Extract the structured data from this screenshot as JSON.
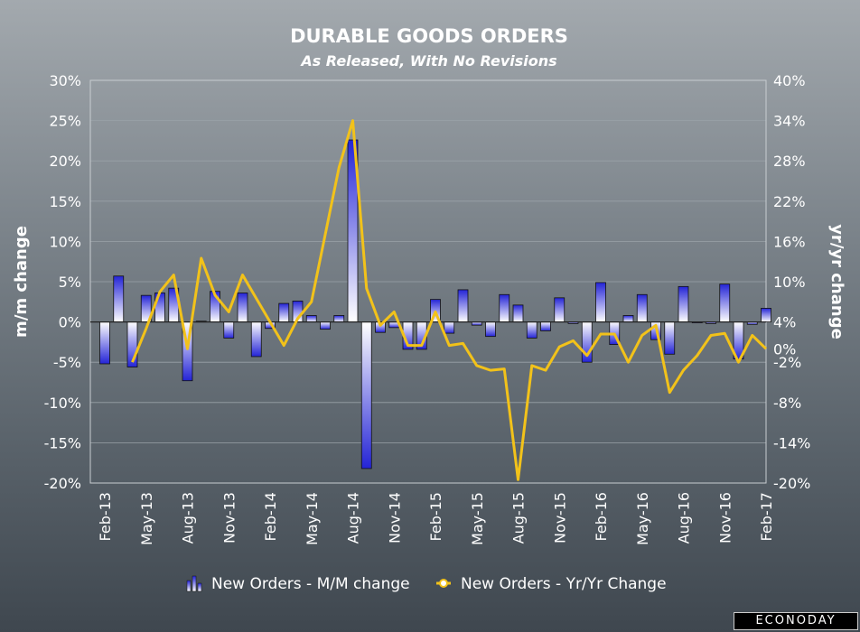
{
  "chart_data": {
    "type": "bar+line",
    "title": "DURABLE GOODS ORDERS",
    "subtitle": "As Released, With No Revisions",
    "ylabel_left": "m/m change",
    "ylabel_right": "yr/yr change",
    "ylim_left": [
      -20,
      30
    ],
    "ylim_right": [
      -20,
      40
    ],
    "yticks_left": [
      "30%",
      "25%",
      "20%",
      "15%",
      "10%",
      "5%",
      "0%",
      "-5%",
      "-10%",
      "-15%",
      "-20%"
    ],
    "yticks_right": [
      "40%",
      "34%",
      "28%",
      "22%",
      "16%",
      "10%",
      "4%",
      "0%",
      "-2%",
      "-8%",
      "-14%",
      "-20%"
    ],
    "x_tick_labels": [
      "Feb-13",
      "May-13",
      "Aug-13",
      "Nov-13",
      "Feb-14",
      "May-14",
      "Aug-14",
      "Nov-14",
      "Feb-15",
      "May-15",
      "Aug-15",
      "Nov-15",
      "Feb-16",
      "May-16",
      "Aug-16",
      "Nov-16",
      "Feb-17"
    ],
    "categories": [
      "Feb-13",
      "Mar-13",
      "Apr-13",
      "May-13",
      "Jun-13",
      "Jul-13",
      "Aug-13",
      "Sep-13",
      "Oct-13",
      "Nov-13",
      "Dec-13",
      "Jan-14",
      "Feb-14",
      "Mar-14",
      "Apr-14",
      "May-14",
      "Jun-14",
      "Jul-14",
      "Aug-14",
      "Sep-14",
      "Oct-14",
      "Nov-14",
      "Dec-14",
      "Jan-15",
      "Feb-15",
      "Mar-15",
      "Apr-15",
      "May-15",
      "Jun-15",
      "Jul-15",
      "Aug-15",
      "Sep-15",
      "Oct-15",
      "Nov-15",
      "Dec-15",
      "Jan-16",
      "Feb-16",
      "Mar-16",
      "Apr-16",
      "May-16",
      "Jun-16",
      "Jul-16",
      "Aug-16",
      "Sep-16",
      "Oct-16",
      "Nov-16",
      "Dec-16",
      "Jan-17",
      "Feb-17"
    ],
    "series": [
      {
        "name": "New Orders - M/M change",
        "type": "bar",
        "axis": "left",
        "values": [
          -5.2,
          5.7,
          -5.6,
          3.3,
          3.6,
          4.2,
          -7.3,
          0.1,
          3.8,
          -2.0,
          3.6,
          -4.3,
          -0.8,
          2.3,
          2.6,
          0.8,
          -0.9,
          0.8,
          22.6,
          -18.2,
          -1.3,
          -0.7,
          -3.4,
          -3.4,
          2.8,
          -1.4,
          4.0,
          -0.4,
          -1.8,
          3.4,
          2.1,
          -2.0,
          -1.1,
          3.0,
          -0.2,
          -5.0,
          4.9,
          -2.8,
          0.8,
          3.4,
          -2.2,
          -4.0,
          4.4,
          -0.1,
          -0.2,
          4.7,
          -4.6,
          -0.3,
          1.7
        ]
      },
      {
        "name": "New Orders - Yr/Yr Change",
        "type": "line",
        "axis": "right",
        "values": [
          null,
          null,
          -2.0,
          3.0,
          8.5,
          11.0,
          0.0,
          13.5,
          8.0,
          5.5,
          11.0,
          7.5,
          4.0,
          0.5,
          4.5,
          7.0,
          17.0,
          27.0,
          34.0,
          9.0,
          3.5,
          5.5,
          0.5,
          0.5,
          5.5,
          0.5,
          0.8,
          -2.5,
          -3.2,
          -3.0,
          -19.5,
          -2.5,
          -3.2,
          0.3,
          1.2,
          -1.0,
          2.2,
          2.2,
          -2.0,
          2.0,
          3.5,
          -6.5,
          -3.2,
          -1.0,
          2.0,
          2.3,
          -2.0,
          2.0,
          0.0
        ]
      }
    ],
    "legend": [
      "New Orders - M/M change",
      "New Orders - Yr/Yr Change"
    ],
    "legend_position": "bottom",
    "grid": true
  },
  "brand": "ECONODAY",
  "colors": {
    "bar_top": "#ffffff",
    "bar_bottom": "#2424d6",
    "line": "#f2c21a",
    "grid": "#9aa2a8",
    "plot_border": "#c8cdd1"
  }
}
